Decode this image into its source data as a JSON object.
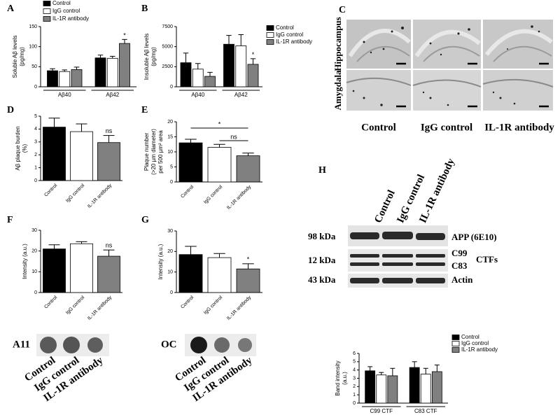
{
  "panels": [
    "A",
    "B",
    "C",
    "D",
    "E",
    "F",
    "G",
    "H"
  ],
  "images": {
    "rows": [
      "Hippocampus",
      "Amygdala"
    ],
    "columns": [
      "Control",
      "IgG control",
      "IL-1R antibody"
    ]
  },
  "dot_blots": [
    {
      "label": "A11",
      "columns": [
        "Control",
        "IgG control",
        "IL-1R antibody"
      ]
    },
    {
      "label": "OC",
      "columns": [
        "Control",
        "IgG control",
        "IL-1R antibody"
      ]
    }
  ],
  "western_blot": {
    "columns": [
      "Control",
      "IgG control",
      "IL-1R antibody"
    ],
    "rows": [
      {
        "size": "98 kDa",
        "label": "APP (6E10)"
      },
      {
        "size": "12 kDa",
        "bands": [
          "C99",
          "C83"
        ],
        "group": "CTFs"
      },
      {
        "size": "43 kDa",
        "label": "Actin"
      }
    ]
  },
  "chart_data": [
    {
      "type": "bar",
      "ylabel": [
        "Soluble Aβ levels",
        "(pg/mg)"
      ],
      "categories": [
        "Aβ40",
        "Aβ42"
      ],
      "series": [
        {
          "name": "Control",
          "color": "#000000",
          "values": [
            40,
            72
          ],
          "errors": [
            5,
            7
          ]
        },
        {
          "name": "IgG control",
          "color": "#ffffff",
          "values": [
            38,
            71
          ],
          "errors": [
            4,
            5
          ]
        },
        {
          "name": "IL-1R antibody",
          "color": "#808080",
          "values": [
            43,
            108
          ],
          "errors": [
            6,
            10
          ],
          "significance": [
            null,
            "*"
          ]
        }
      ],
      "ylim": [
        0,
        150
      ],
      "yticks": [
        0,
        50,
        100,
        150
      ],
      "legend": "upper left"
    },
    {
      "type": "bar",
      "ylabel": [
        "Insoluble Aβ levels",
        "(pg/mg)"
      ],
      "categories": [
        "Aβ40",
        "Aβ42"
      ],
      "series": [
        {
          "name": "Control",
          "color": "#000000",
          "values": [
            3000,
            5300
          ],
          "errors": [
            1200,
            1100
          ]
        },
        {
          "name": "IgG control",
          "color": "#ffffff",
          "values": [
            2200,
            5100
          ],
          "errors": [
            700,
            1400
          ]
        },
        {
          "name": "IL-1R antibody",
          "color": "#808080",
          "values": [
            1300,
            2800
          ],
          "errors": [
            500,
            700
          ],
          "significance": [
            null,
            "*"
          ]
        }
      ],
      "ylim": [
        0,
        7500
      ],
      "yticks": [
        0,
        2500,
        5000,
        7500
      ],
      "legend": "upper right"
    },
    {
      "type": "bar",
      "ylabel": [
        "Aβ plaque burden",
        "(%)"
      ],
      "categories": [
        "Control",
        "IgG control",
        "IL-1R antibody"
      ],
      "values": [
        4.15,
        3.8,
        2.95
      ],
      "errors": [
        0.7,
        0.6,
        0.55
      ],
      "colors": [
        "#000000",
        "#ffffff",
        "#808080"
      ],
      "significance": [
        null,
        null,
        "ns"
      ],
      "ylim": [
        0,
        5
      ],
      "yticks": [
        0,
        1,
        2,
        3,
        4,
        5
      ],
      "rotate_labels": true
    },
    {
      "type": "bar",
      "ylabel": [
        "Plaque number",
        "(>20 µm diameter)",
        "per 500 µm² area"
      ],
      "categories": [
        "Control",
        "IgG control",
        "IL-1R antibody"
      ],
      "values": [
        13,
        11.5,
        8.7
      ],
      "errors": [
        1.2,
        1,
        0.9
      ],
      "colors": [
        "#000000",
        "#ffffff",
        "#808080"
      ],
      "brackets": [
        {
          "between": [
            "Control",
            "IL-1R antibody"
          ],
          "text": "*"
        },
        {
          "between": [
            "IgG control",
            "IL-1R antibody"
          ],
          "text": "ns"
        }
      ],
      "ylim": [
        0,
        20
      ],
      "yticks": [
        0,
        5,
        10,
        15,
        20
      ],
      "rotate_labels": true
    },
    {
      "type": "bar",
      "ylabel": [
        "Intensity (a.u.)"
      ],
      "categories": [
        "Control",
        "IgG control",
        "IL-1R antibody"
      ],
      "values": [
        21,
        23.5,
        17.5
      ],
      "errors": [
        2,
        1,
        3
      ],
      "colors": [
        "#000000",
        "#ffffff",
        "#808080"
      ],
      "significance": [
        null,
        null,
        "ns"
      ],
      "ylim": [
        0,
        30
      ],
      "yticks": [
        0,
        10,
        20,
        30
      ],
      "rotate_labels": true
    },
    {
      "type": "bar",
      "ylabel": [
        "Intensity (a.u.)"
      ],
      "categories": [
        "Control",
        "IgG control",
        "IL-1R antibody"
      ],
      "values": [
        18.5,
        17,
        11.5
      ],
      "errors": [
        4,
        2,
        2.5
      ],
      "colors": [
        "#000000",
        "#ffffff",
        "#808080"
      ],
      "significance": [
        null,
        null,
        "*"
      ],
      "ylim": [
        0,
        30
      ],
      "yticks": [
        0,
        10,
        20,
        30
      ],
      "rotate_labels": true
    },
    {
      "type": "bar",
      "ylabel": [
        "Band intensity",
        "(a.u.)"
      ],
      "categories": [
        "C99 CTF",
        "C83 CTF"
      ],
      "series": [
        {
          "name": "Control",
          "color": "#000000",
          "values": [
            3.9,
            4.3
          ],
          "errors": [
            0.5,
            0.7
          ]
        },
        {
          "name": "IgG control",
          "color": "#ffffff",
          "values": [
            3.4,
            3.5
          ],
          "errors": [
            0.3,
            0.7
          ]
        },
        {
          "name": "IL-1R antibody",
          "color": "#808080",
          "values": [
            3.3,
            3.8
          ],
          "errors": [
            0.9,
            0.8
          ]
        }
      ],
      "ylim": [
        0,
        6
      ],
      "yticks": [
        0,
        1,
        2,
        3,
        4,
        5,
        6
      ],
      "legend": "upper right"
    }
  ]
}
